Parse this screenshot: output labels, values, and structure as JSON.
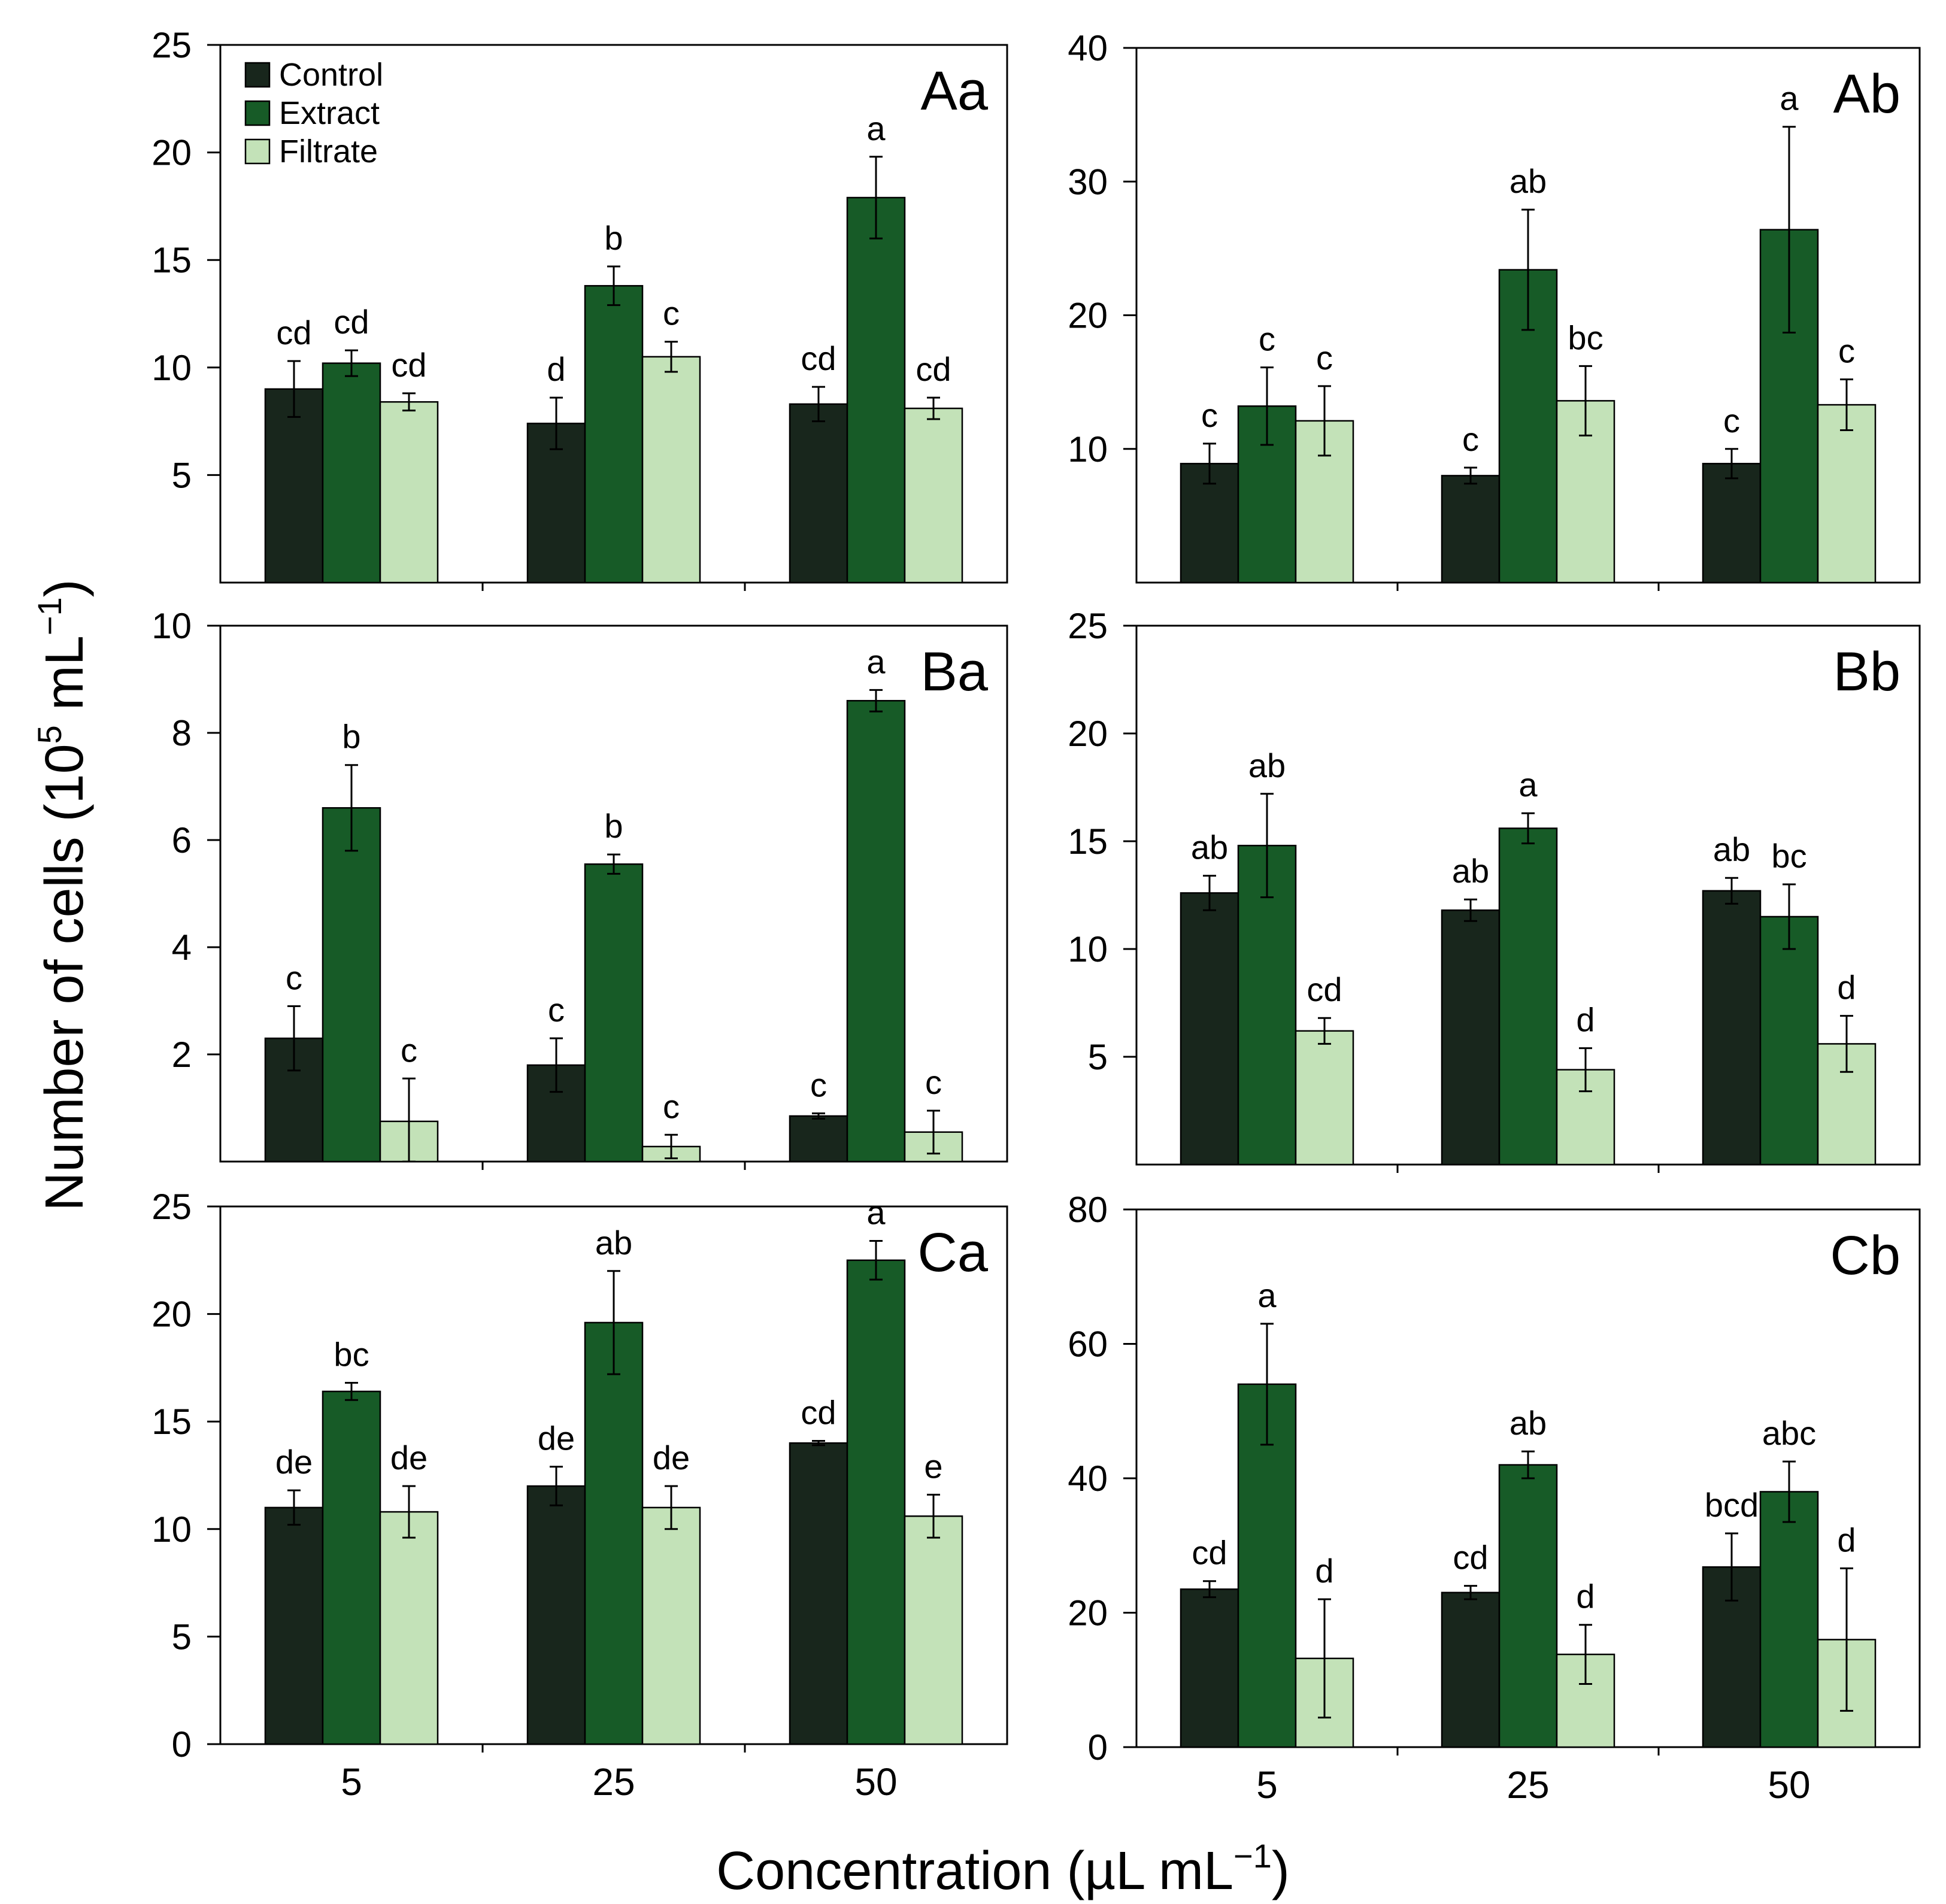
{
  "figure": {
    "ylabel_main": "Number of cells (10",
    "ylabel_sup": "5",
    "ylabel_unit": " mL",
    "ylabel_sup2": "−1",
    "ylabel_close": ")",
    "xlabel_main": "Concentration (µL mL",
    "xlabel_sup": "−1",
    "xlabel_close": ")"
  },
  "colors": {
    "Control": "#18261c",
    "Extract": "#175b27",
    "Filtrate": "#c3e2b8"
  },
  "legend": [
    "Control",
    "Extract",
    "Filtrate"
  ],
  "categories": [
    "5",
    "25",
    "50"
  ],
  "chart_data": [
    {
      "type": "bar",
      "panel": "Aa",
      "ylim": [
        0,
        25
      ],
      "yticks": [
        5,
        10,
        15,
        20,
        25
      ],
      "xticks": false,
      "series": [
        {
          "name": "Control",
          "values": [
            9.0,
            7.4,
            8.3
          ],
          "errors": [
            1.3,
            1.2,
            0.8
          ],
          "letters": [
            "cd",
            "d",
            "cd"
          ]
        },
        {
          "name": "Extract",
          "values": [
            10.2,
            13.8,
            17.9
          ],
          "errors": [
            0.6,
            0.9,
            1.9
          ],
          "letters": [
            "cd",
            "b",
            "a"
          ]
        },
        {
          "name": "Filtrate",
          "values": [
            8.4,
            10.5,
            8.1
          ],
          "errors": [
            0.4,
            0.7,
            0.5
          ],
          "letters": [
            "cd",
            "c",
            "cd"
          ]
        }
      ]
    },
    {
      "type": "bar",
      "panel": "Ab",
      "ylim": [
        0,
        40
      ],
      "yticks": [
        10,
        20,
        30,
        40
      ],
      "xticks": false,
      "series": [
        {
          "name": "Control",
          "values": [
            8.9,
            8.0,
            8.9
          ],
          "errors": [
            1.5,
            0.6,
            1.1
          ],
          "letters": [
            "c",
            "c",
            "c"
          ]
        },
        {
          "name": "Extract",
          "values": [
            13.2,
            23.4,
            26.4
          ],
          "errors": [
            2.9,
            4.5,
            7.7
          ],
          "letters": [
            "c",
            "ab",
            "a"
          ]
        },
        {
          "name": "Filtrate",
          "values": [
            12.1,
            13.6,
            13.3
          ],
          "errors": [
            2.6,
            2.6,
            1.9
          ],
          "letters": [
            "c",
            "bc",
            "c"
          ]
        }
      ]
    },
    {
      "type": "bar",
      "panel": "Ba",
      "ylim": [
        0,
        10
      ],
      "yticks": [
        2,
        4,
        6,
        8,
        10
      ],
      "xticks": false,
      "series": [
        {
          "name": "Control",
          "values": [
            2.3,
            1.8,
            0.85
          ],
          "errors": [
            0.6,
            0.5,
            0.05
          ],
          "letters": [
            "c",
            "c",
            "c"
          ]
        },
        {
          "name": "Extract",
          "values": [
            6.6,
            5.55,
            8.6
          ],
          "errors": [
            0.8,
            0.18,
            0.2
          ],
          "letters": [
            "b",
            "b",
            "a"
          ]
        },
        {
          "name": "Filtrate",
          "values": [
            0.75,
            0.28,
            0.55
          ],
          "errors": [
            0.8,
            0.22,
            0.4
          ],
          "letters": [
            "c",
            "c",
            "c"
          ]
        }
      ]
    },
    {
      "type": "bar",
      "panel": "Bb",
      "ylim": [
        0,
        25
      ],
      "yticks": [
        5,
        10,
        15,
        20,
        25
      ],
      "xticks": false,
      "series": [
        {
          "name": "Control",
          "values": [
            12.6,
            11.8,
            12.7
          ],
          "errors": [
            0.8,
            0.5,
            0.6
          ],
          "letters": [
            "ab",
            "ab",
            "ab"
          ]
        },
        {
          "name": "Extract",
          "values": [
            14.8,
            15.6,
            11.5
          ],
          "errors": [
            2.4,
            0.7,
            1.5
          ],
          "letters": [
            "ab",
            "a",
            "bc"
          ]
        },
        {
          "name": "Filtrate",
          "values": [
            6.2,
            4.4,
            5.6
          ],
          "errors": [
            0.6,
            1.0,
            1.3
          ],
          "letters": [
            "cd",
            "d",
            "d"
          ]
        }
      ]
    },
    {
      "type": "bar",
      "panel": "Ca",
      "ylim": [
        0,
        25
      ],
      "yticks": [
        0,
        5,
        10,
        15,
        20,
        25
      ],
      "xticks": true,
      "series": [
        {
          "name": "Control",
          "values": [
            11.0,
            12.0,
            14.0
          ],
          "errors": [
            0.8,
            0.9,
            0.1
          ],
          "letters": [
            "de",
            "de",
            "cd"
          ]
        },
        {
          "name": "Extract",
          "values": [
            16.4,
            19.6,
            22.5
          ],
          "errors": [
            0.4,
            2.4,
            0.9
          ],
          "letters": [
            "bc",
            "ab",
            "a"
          ]
        },
        {
          "name": "Filtrate",
          "values": [
            10.8,
            11.0,
            10.6
          ],
          "errors": [
            1.2,
            1.0,
            1.0
          ],
          "letters": [
            "de",
            "de",
            "e"
          ]
        }
      ]
    },
    {
      "type": "bar",
      "panel": "Cb",
      "ylim": [
        0,
        80
      ],
      "yticks": [
        0,
        20,
        40,
        60,
        80
      ],
      "xticks": true,
      "series": [
        {
          "name": "Control",
          "values": [
            23.5,
            23.0,
            26.8
          ],
          "errors": [
            1.2,
            1.0,
            5.0
          ],
          "letters": [
            "cd",
            "cd",
            "bcd"
          ]
        },
        {
          "name": "Extract",
          "values": [
            54.0,
            42.0,
            38.0
          ],
          "errors": [
            9.0,
            2.0,
            4.5
          ],
          "letters": [
            "a",
            "ab",
            "abc"
          ]
        },
        {
          "name": "Filtrate",
          "values": [
            13.2,
            13.8,
            16.0
          ],
          "errors": [
            8.8,
            4.4,
            10.6
          ],
          "letters": [
            "d",
            "d",
            "d"
          ]
        }
      ]
    }
  ]
}
